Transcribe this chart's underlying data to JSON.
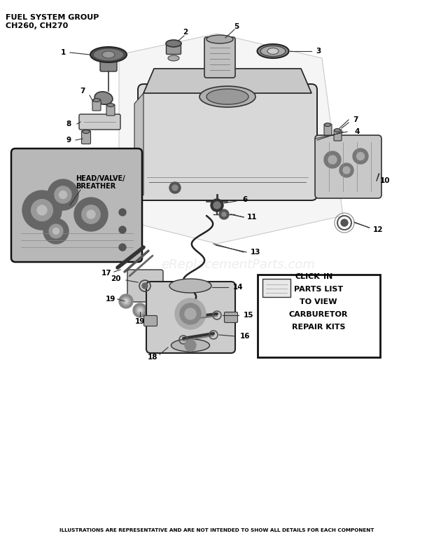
{
  "title_line1": "FUEL SYSTEM GROUP",
  "title_line2": "CH260, CH270",
  "footer": "ILLUSTRATIONS ARE REPRESENTATIVE AND ARE NOT INTENDED TO SHOW ALL DETAILS FOR EACH COMPONENT",
  "watermark": "eReplacementParts.com",
  "bg_color": "#ffffff",
  "text_color": "#000000",
  "fig_w": 6.2,
  "fig_h": 7.68,
  "dpi": 100
}
